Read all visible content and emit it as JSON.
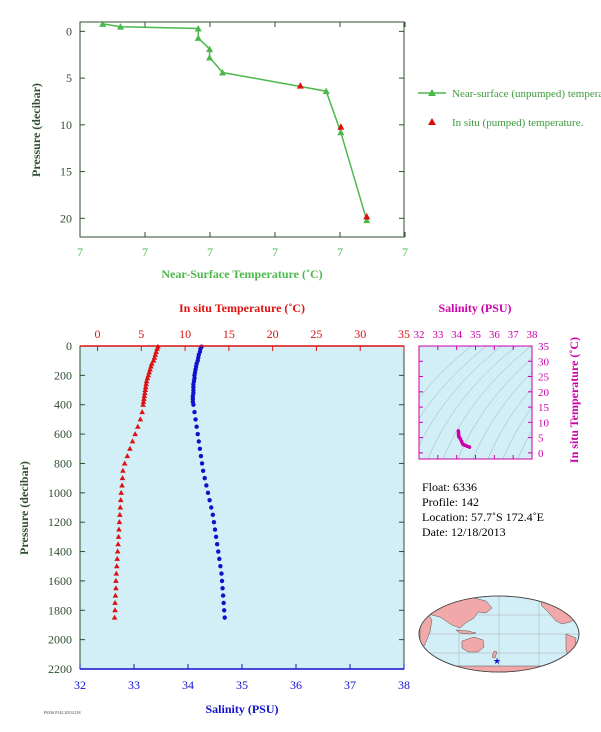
{
  "colors": {
    "green": "#4cb84c",
    "red": "#dd1111",
    "blue": "#1111cc",
    "magenta": "#cc00aa",
    "panel_bg": "#d2eef6",
    "axis_dark": "#2f4f2f",
    "land": "#f0a8a8",
    "ocean": "#d2eef6"
  },
  "chart_data": [
    {
      "type": "line",
      "title": "",
      "xlabel": "Near-Surface Temperature (˚C)",
      "ylabel": "Pressure (decibar)",
      "x_tick_labels": [
        "7",
        "7",
        "7",
        "7",
        "7",
        "7"
      ],
      "y_ticks": [
        0,
        5,
        10,
        15,
        20
      ],
      "y_tick_labels": [
        "0",
        "5",
        "10",
        "15",
        "20"
      ],
      "ylim": [
        -1,
        22
      ],
      "y_inverted": true,
      "x_scale_note": "x values are fractions of the axis span (tick labels all read 7)",
      "grid": false,
      "legend_position": "right",
      "series": [
        {
          "name": "Near-surface (unpumped) temperature.",
          "marker": "triangle",
          "color": "#4cb84c",
          "points": [
            [
              0.07,
              -0.8
            ],
            [
              0.125,
              -0.5
            ],
            [
              0.365,
              -0.3
            ],
            [
              0.365,
              0.7
            ],
            [
              0.4,
              1.9
            ],
            [
              0.4,
              2.8
            ],
            [
              0.44,
              4.4
            ],
            [
              0.76,
              6.4
            ],
            [
              0.805,
              10.8
            ],
            [
              0.885,
              20.2
            ]
          ]
        },
        {
          "name": "In situ (pumped) temperature.",
          "marker": "triangle",
          "color": "#dd1111",
          "points": [
            [
              0.68,
              5.8
            ],
            [
              0.805,
              10.2
            ],
            [
              0.885,
              19.8
            ]
          ]
        }
      ]
    },
    {
      "type": "scatter",
      "title": "",
      "ylabel": "Pressure (decibar)",
      "y_ticks": [
        0,
        200,
        400,
        600,
        800,
        1000,
        1200,
        1400,
        1600,
        1800,
        2000,
        2200
      ],
      "y_tick_labels": [
        "0",
        "200",
        "400",
        "600",
        "800",
        "1000",
        "1200",
        "1400",
        "1600",
        "1800",
        "2000",
        "2200"
      ],
      "ylim": [
        0,
        2200
      ],
      "y_inverted": true,
      "top_axis": {
        "label": "In situ Temperature (˚C)",
        "ticks": [
          0,
          5,
          10,
          15,
          20,
          25,
          30,
          35
        ],
        "tick_labels": [
          "0",
          "5",
          "10",
          "15",
          "20",
          "25",
          "30",
          "35"
        ],
        "range": [
          -2,
          35
        ]
      },
      "bottom_axis": {
        "label": "Salinity (PSU)",
        "ticks": [
          32,
          33,
          34,
          35,
          36,
          37,
          38
        ],
        "tick_labels": [
          "32",
          "33",
          "34",
          "35",
          "36",
          "37",
          "38"
        ],
        "range": [
          32,
          38
        ]
      },
      "series": [
        {
          "name": "",
          "axis": "temperature",
          "color": "#dd1111",
          "marker": "triangle",
          "points": [
            [
              6.9,
              5
            ],
            [
              6.8,
              20
            ],
            [
              6.7,
              40
            ],
            [
              6.6,
              60
            ],
            [
              6.5,
              80
            ],
            [
              6.4,
              100
            ],
            [
              6.2,
              120
            ],
            [
              6.1,
              140
            ],
            [
              6.0,
              160
            ],
            [
              5.9,
              180
            ],
            [
              5.8,
              200
            ],
            [
              5.7,
              220
            ],
            [
              5.6,
              240
            ],
            [
              5.55,
              260
            ],
            [
              5.5,
              280
            ],
            [
              5.45,
              300
            ],
            [
              5.4,
              320
            ],
            [
              5.35,
              340
            ],
            [
              5.3,
              360
            ],
            [
              5.25,
              380
            ],
            [
              5.2,
              400
            ],
            [
              5.1,
              450
            ],
            [
              4.9,
              500
            ],
            [
              4.6,
              550
            ],
            [
              4.3,
              600
            ],
            [
              4.0,
              650
            ],
            [
              3.7,
              700
            ],
            [
              3.4,
              750
            ],
            [
              3.1,
              800
            ],
            [
              2.9,
              850
            ],
            [
              2.85,
              900
            ],
            [
              2.8,
              950
            ],
            [
              2.7,
              1000
            ],
            [
              2.65,
              1050
            ],
            [
              2.6,
              1100
            ],
            [
              2.55,
              1150
            ],
            [
              2.5,
              1200
            ],
            [
              2.45,
              1250
            ],
            [
              2.4,
              1300
            ],
            [
              2.35,
              1350
            ],
            [
              2.3,
              1400
            ],
            [
              2.25,
              1450
            ],
            [
              2.2,
              1500
            ],
            [
              2.15,
              1550
            ],
            [
              2.1,
              1600
            ],
            [
              2.1,
              1650
            ],
            [
              2.05,
              1700
            ],
            [
              2.0,
              1750
            ],
            [
              2.0,
              1800
            ],
            [
              1.95,
              1850
            ]
          ]
        },
        {
          "name": "",
          "axis": "salinity",
          "color": "#1111cc",
          "marker": "circle",
          "points": [
            [
              34.25,
              5
            ],
            [
              34.23,
              20
            ],
            [
              34.22,
              40
            ],
            [
              34.2,
              60
            ],
            [
              34.19,
              80
            ],
            [
              34.18,
              100
            ],
            [
              34.16,
              120
            ],
            [
              34.15,
              140
            ],
            [
              34.14,
              160
            ],
            [
              34.13,
              180
            ],
            [
              34.12,
              200
            ],
            [
              34.12,
              220
            ],
            [
              34.11,
              240
            ],
            [
              34.1,
              260
            ],
            [
              34.1,
              280
            ],
            [
              34.1,
              300
            ],
            [
              34.1,
              320
            ],
            [
              34.09,
              340
            ],
            [
              34.09,
              360
            ],
            [
              34.09,
              380
            ],
            [
              34.1,
              400
            ],
            [
              34.12,
              450
            ],
            [
              34.14,
              500
            ],
            [
              34.16,
              550
            ],
            [
              34.18,
              600
            ],
            [
              34.2,
              650
            ],
            [
              34.22,
              700
            ],
            [
              34.24,
              750
            ],
            [
              34.26,
              800
            ],
            [
              34.28,
              850
            ],
            [
              34.31,
              900
            ],
            [
              34.34,
              950
            ],
            [
              34.37,
              1000
            ],
            [
              34.4,
              1050
            ],
            [
              34.43,
              1100
            ],
            [
              34.46,
              1150
            ],
            [
              34.48,
              1200
            ],
            [
              34.5,
              1250
            ],
            [
              34.52,
              1300
            ],
            [
              34.54,
              1350
            ],
            [
              34.56,
              1400
            ],
            [
              34.58,
              1450
            ],
            [
              34.6,
              1500
            ],
            [
              34.62,
              1550
            ],
            [
              34.63,
              1600
            ],
            [
              34.64,
              1650
            ],
            [
              34.65,
              1700
            ],
            [
              34.66,
              1750
            ],
            [
              34.67,
              1800
            ],
            [
              34.68,
              1850
            ]
          ]
        }
      ]
    },
    {
      "type": "scatter",
      "title": "",
      "xlabel": "Salinity (PSU)",
      "ylabel": "In situ Temperature (˚C)",
      "x_ticks": [
        32,
        33,
        34,
        35,
        36,
        37,
        38
      ],
      "x_tick_labels": [
        "32",
        "33",
        "34",
        "35",
        "36",
        "37",
        "38"
      ],
      "xlim": [
        32,
        38
      ],
      "y_ticks": [
        0,
        5,
        10,
        15,
        20,
        25,
        30,
        35
      ],
      "y_tick_labels": [
        "0",
        "5",
        "10",
        "15",
        "20",
        "25",
        "30",
        "35"
      ],
      "ylim": [
        -2,
        35
      ],
      "density_contours": true,
      "series": [
        {
          "name": "",
          "color": "#cc00aa",
          "points": [
            [
              34.09,
              7.2
            ],
            [
              34.1,
              6.6
            ],
            [
              34.1,
              6.0
            ],
            [
              34.11,
              5.5
            ],
            [
              34.13,
              5.2
            ],
            [
              34.2,
              4.6
            ],
            [
              34.26,
              3.7
            ],
            [
              34.32,
              2.9
            ],
            [
              34.37,
              2.7
            ],
            [
              34.45,
              2.5
            ],
            [
              34.55,
              2.2
            ],
            [
              34.68,
              1.9
            ]
          ]
        }
      ]
    }
  ],
  "float_info": {
    "float": "Float:  6336",
    "profile": "Profile:  142",
    "location": "Location:  57.7˚S  172.4˚E",
    "date": "Date:  12/18/2013"
  },
  "map": {
    "marker_lon": 172.4,
    "marker_lat": -57.7
  },
  "footer_text": "F6336 P142 20131218"
}
